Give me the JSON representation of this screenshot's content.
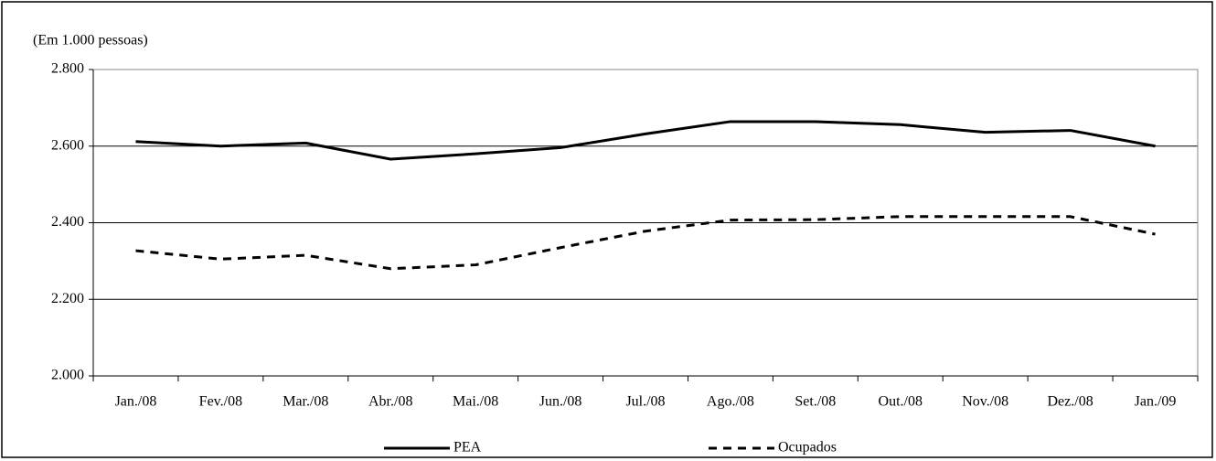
{
  "chart_data": {
    "type": "line",
    "y_axis_label": "(Em 1.000 pessoas)",
    "categories": [
      "Jan./08",
      "Fev./08",
      "Mar./08",
      "Abr./08",
      "Mai./08",
      "Jun./08",
      "Jul./08",
      "Ago./08",
      "Set./08",
      "Out./08",
      "Nov./08",
      "Dez./08",
      "Jan./09"
    ],
    "series": [
      {
        "name": "PEA",
        "color": "#000000",
        "line_style": "solid",
        "values": [
          2612,
          2600,
          2608,
          2566,
          2580,
          2596,
          2632,
          2664,
          2664,
          2656,
          2636,
          2641,
          2600
        ]
      },
      {
        "name": "Ocupados",
        "color": "#000000",
        "line_style": "dashed",
        "values": [
          2327,
          2305,
          2315,
          2280,
          2290,
          2335,
          2378,
          2407,
          2408,
          2416,
          2416,
          2416,
          2370
        ]
      }
    ],
    "ylim": [
      2000,
      2800
    ],
    "yticks": [
      {
        "value": 2000,
        "label": "2.000"
      },
      {
        "value": 2200,
        "label": "2.200"
      },
      {
        "value": 2400,
        "label": "2.400"
      },
      {
        "value": 2600,
        "label": "2.600"
      },
      {
        "value": 2800,
        "label": "2.800"
      }
    ],
    "grid": true,
    "legend": "bottom"
  }
}
